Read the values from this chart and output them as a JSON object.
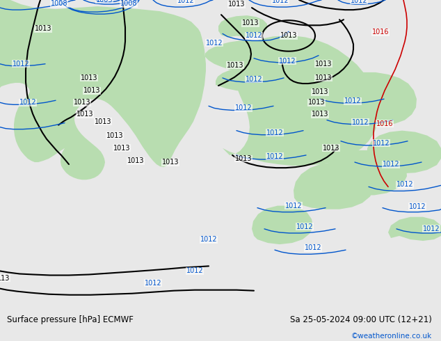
{
  "title_left": "Surface pressure [hPa] ECMWF",
  "title_right": "Sa 25-05-2024 09:00 UTC (12+21)",
  "watermark": "©weatheronline.co.uk",
  "bg_color": "#e8e8e8",
  "map_bg": "#dcdcdc",
  "green_fill": "#b8ddb0",
  "label_color_black": "#000000",
  "label_color_blue": "#0055cc",
  "label_color_red": "#cc0000",
  "figsize": [
    6.34,
    4.9
  ],
  "dpi": 100,
  "bottom_bar_height": 0.092
}
